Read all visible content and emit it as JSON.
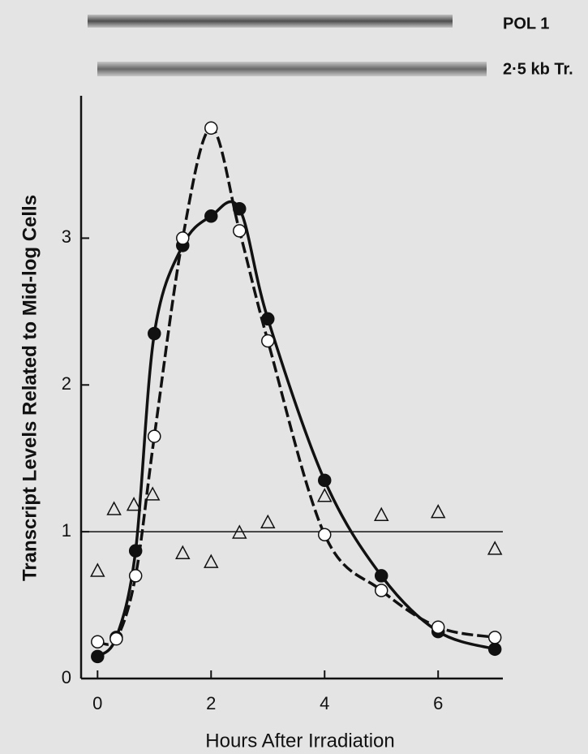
{
  "chart_data": {
    "type": "line",
    "blot_labels": [
      "POL 1",
      "2·5 kb Tr."
    ],
    "x_label": "Hours After Irradiation",
    "y_label": "Transcript Levels Related to Mid-log Cells",
    "xlim": [
      -0.29,
      7.14
    ],
    "ylim": [
      0,
      3.97
    ],
    "xticks": [
      0,
      2,
      4,
      6
    ],
    "yticks": [
      0,
      1,
      2,
      3
    ],
    "hline": 1,
    "color": "#111111",
    "series": [
      {
        "marker": "filled-circle",
        "line_style": "solid",
        "x": [
          0,
          0.33,
          0.67,
          1,
          1.5,
          2,
          2.5,
          3,
          4,
          5,
          6,
          7
        ],
        "values": [
          0.15,
          0.28,
          0.87,
          2.35,
          2.95,
          3.15,
          3.2,
          2.45,
          1.35,
          0.7,
          0.32,
          0.2
        ]
      },
      {
        "marker": "open-circle",
        "line_style": "dashed",
        "x": [
          0,
          0.33,
          0.67,
          1,
          1.5,
          2,
          2.5,
          3,
          4,
          5,
          6,
          7
        ],
        "values": [
          0.25,
          0.27,
          0.7,
          1.65,
          3.0,
          3.75,
          3.05,
          2.3,
          0.98,
          0.6,
          0.35,
          0.28
        ]
      },
      {
        "marker": "triangle",
        "line_style": "none",
        "x": [
          0,
          0.29,
          0.64,
          0.97,
          1.5,
          2,
          2.5,
          3,
          4,
          5,
          6,
          7
        ],
        "values": [
          0.73,
          1.15,
          1.18,
          1.25,
          0.85,
          0.79,
          0.99,
          1.06,
          1.24,
          1.11,
          1.13,
          0.88
        ]
      }
    ]
  }
}
